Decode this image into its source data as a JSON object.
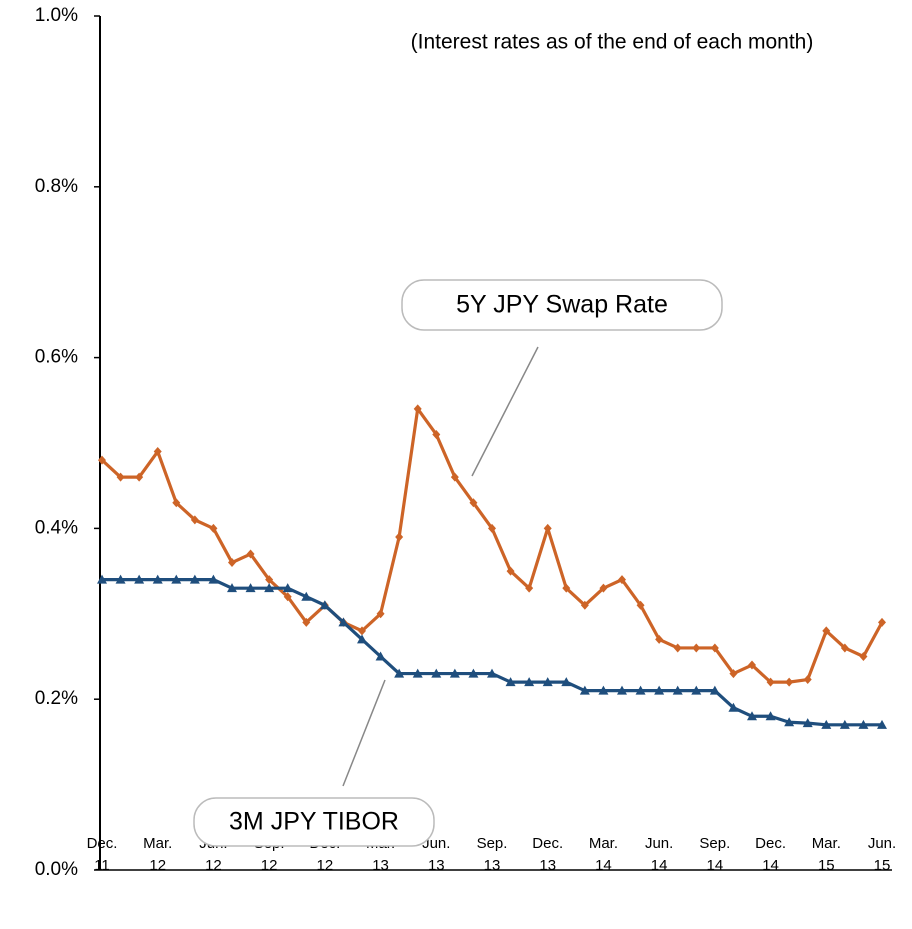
{
  "chart_data": {
    "type": "line",
    "subtitle": "(Interest rates as of the end of each month)",
    "categories": [
      "Dec. 11",
      null,
      null,
      "Mar. 12",
      null,
      null,
      "Jun. 12",
      null,
      null,
      "Sep. 12",
      null,
      null,
      "Dec. 12",
      null,
      null,
      "Mar. 13",
      null,
      null,
      "Jun. 13",
      null,
      null,
      "Sep. 13",
      null,
      null,
      "Dec. 13",
      null,
      null,
      "Mar. 14",
      null,
      null,
      "Jun. 14",
      null,
      null,
      "Sep. 14",
      null,
      null,
      "Dec. 14",
      null,
      null,
      "Mar. 15",
      null,
      null,
      "Jun. 15"
    ],
    "series": [
      {
        "name": "5Y JPY Swap Rate",
        "color": "#cd6427",
        "marker": "diamond",
        "values": [
          0.48,
          0.46,
          0.46,
          0.49,
          0.43,
          0.41,
          0.4,
          0.36,
          0.37,
          0.34,
          0.32,
          0.29,
          0.31,
          0.29,
          0.28,
          0.3,
          0.39,
          0.54,
          0.51,
          0.46,
          0.43,
          0.4,
          0.35,
          0.33,
          0.4,
          0.33,
          0.31,
          0.33,
          0.34,
          0.31,
          0.27,
          0.26,
          0.26,
          0.26,
          0.23,
          0.24,
          0.22,
          0.22,
          0.223,
          0.28,
          0.26,
          0.25,
          0.29
        ]
      },
      {
        "name": "3M JPY TIBOR",
        "color": "#1f4e7d",
        "marker": "triangle",
        "values": [
          0.34,
          0.34,
          0.34,
          0.34,
          0.34,
          0.34,
          0.34,
          0.33,
          0.33,
          0.33,
          0.33,
          0.32,
          0.31,
          0.29,
          0.27,
          0.25,
          0.23,
          0.23,
          0.23,
          0.23,
          0.23,
          0.23,
          0.22,
          0.22,
          0.22,
          0.22,
          0.21,
          0.21,
          0.21,
          0.21,
          0.21,
          0.21,
          0.21,
          0.21,
          0.19,
          0.18,
          0.18,
          0.173,
          0.172,
          0.17,
          0.17,
          0.17,
          0.17
        ]
      }
    ],
    "ylim": [
      0,
      1.0
    ],
    "yticks": [
      {
        "value": 0,
        "label": "0.0%"
      },
      {
        "value": 0.2,
        "label": "0.2%"
      },
      {
        "value": 0.4,
        "label": "0.4%"
      },
      {
        "value": 0.6,
        "label": "0.6%"
      },
      {
        "value": 0.8,
        "label": "0.8%"
      },
      {
        "value": 1.0,
        "label": "1.0%"
      }
    ],
    "grid": false
  }
}
